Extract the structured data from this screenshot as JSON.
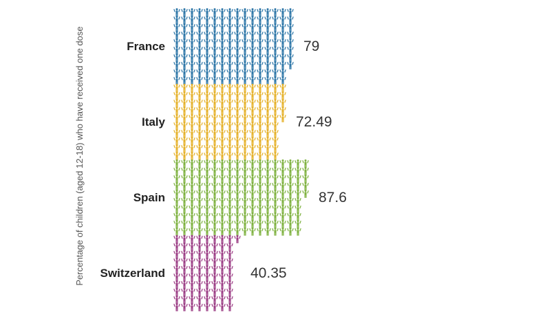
{
  "chart_data": {
    "type": "pictogram",
    "ylabel": "Percentage of children (aged 12-18) who have received one dose",
    "categories": [
      "France",
      "Italy",
      "Spain",
      "Switzerland"
    ],
    "values": [
      79,
      72.49,
      87.6,
      40.35
    ],
    "colors": [
      "#2f77a8",
      "#e5b22c",
      "#7fb241",
      "#9c3f86"
    ],
    "icon": "person-icon",
    "units_per_icon": 0.5,
    "grid": false,
    "legend": "none"
  }
}
